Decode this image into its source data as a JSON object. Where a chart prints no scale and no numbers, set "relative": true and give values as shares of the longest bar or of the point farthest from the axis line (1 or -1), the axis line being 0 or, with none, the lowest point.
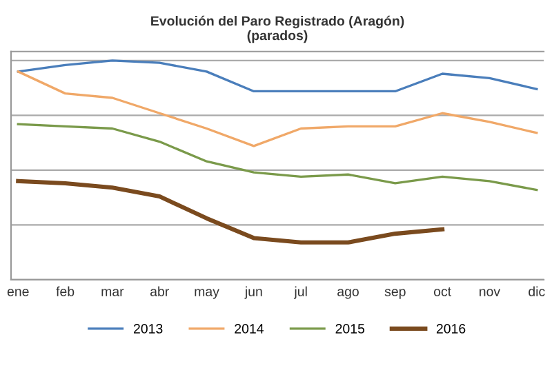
{
  "chart_data": {
    "type": "line",
    "title": "Evolución del Paro Registrado (Aragón)\n(parados)",
    "relative": true,
    "grid": "y",
    "legend": "bottom",
    "categories": [
      "ene",
      "feb",
      "mar",
      "abr",
      "may",
      "jun",
      "jul",
      "ago",
      "sep",
      "oct",
      "nov",
      "dic"
    ],
    "series": [
      {
        "name": "2013",
        "color": "#4a7ebb",
        "values": [
          0.95,
          0.98,
          1,
          0.99,
          0.95,
          0.86,
          0.86,
          0.86,
          0.86,
          0.94,
          0.92,
          0.87
        ]
      },
      {
        "name": "2014",
        "color": "#f0a868",
        "values": [
          0.95,
          0.85,
          0.83,
          0.76,
          0.69,
          0.61,
          0.69,
          0.7,
          0.7,
          0.76,
          0.72,
          0.67
        ]
      },
      {
        "name": "2015",
        "color": "#7a9a4a",
        "values": [
          0.71,
          0.7,
          0.69,
          0.63,
          0.54,
          0.49,
          0.47,
          0.48,
          0.44,
          0.47,
          0.45,
          0.41
        ]
      },
      {
        "name": "2016",
        "color": "#7a4a1e",
        "values": [
          0.45,
          0.44,
          0.42,
          0.38,
          0.28,
          0.19,
          0.17,
          0.17,
          0.21,
          0.23,
          null,
          null
        ]
      }
    ]
  }
}
